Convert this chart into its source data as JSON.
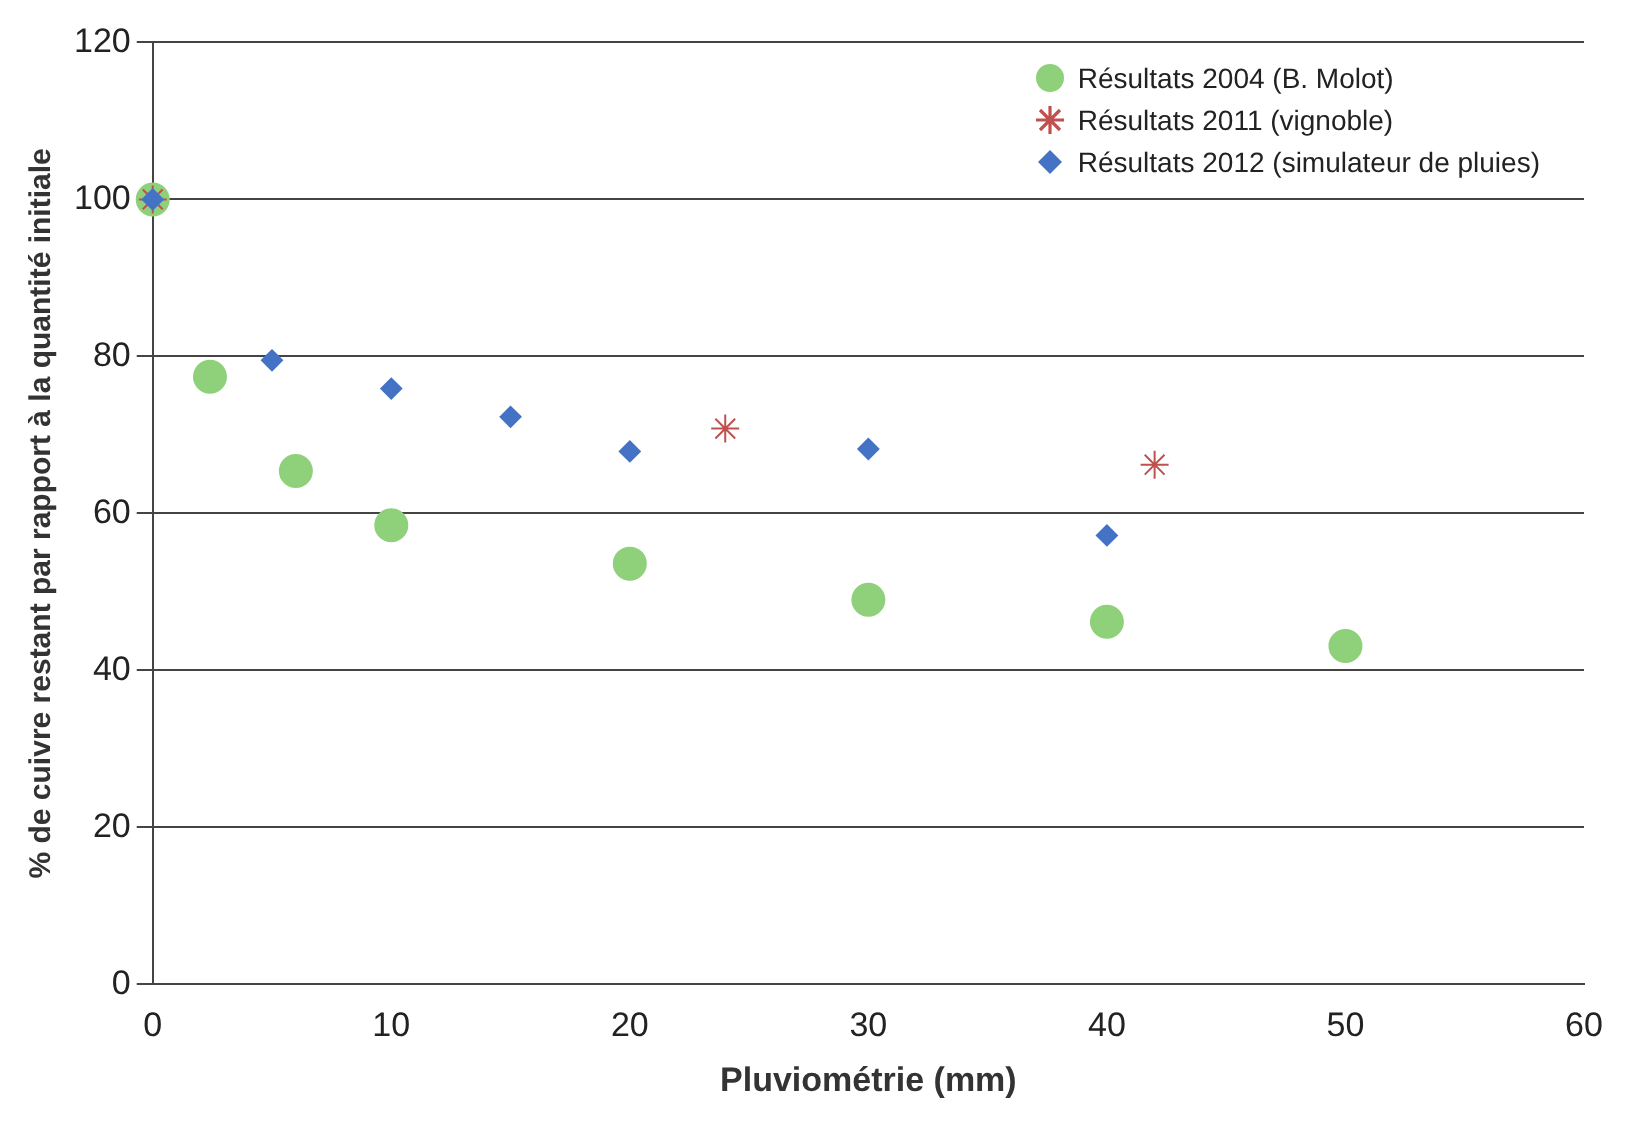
{
  "chart_data": {
    "type": "scatter",
    "xlabel": "Pluviométrie (mm)",
    "ylabel": "% de cuivre restant par rapport à la quantité initiale",
    "xlim": [
      0,
      60
    ],
    "xticks": [
      0,
      10,
      20,
      30,
      40,
      50,
      60
    ],
    "ylim": [
      0,
      120
    ],
    "yticks": [
      0,
      20,
      40,
      60,
      80,
      100,
      120
    ],
    "grid": "y",
    "legend": "top right",
    "series": [
      {
        "name": "Résultats 2004 (B. Molot)",
        "color": "#8fd17a",
        "marker": "circle",
        "x": [
          0,
          2.4,
          6,
          10,
          20,
          30,
          40,
          50
        ],
        "values": [
          100,
          77.4,
          65.4,
          58.5,
          53.6,
          49,
          46.2,
          43.1
        ]
      },
      {
        "name": "Résultats 2011 (vignoble)",
        "color": "#c0504d",
        "marker": "cross",
        "x": [
          0,
          24,
          42
        ],
        "values": [
          100,
          70.8,
          66.2
        ]
      },
      {
        "name": "Résultats 2012 (simulateur de pluies)",
        "color": "#4472c4",
        "marker": "diamond",
        "x": [
          0,
          5,
          10,
          15,
          20,
          30,
          40
        ],
        "values": [
          100,
          79.5,
          75.9,
          72.3,
          67.9,
          68.2,
          57.2
        ]
      }
    ]
  }
}
